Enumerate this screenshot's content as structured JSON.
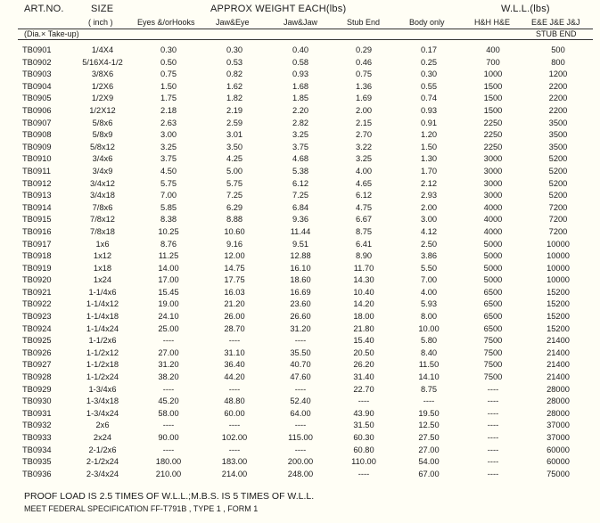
{
  "header": {
    "art_no": "ART.NO.",
    "size": "SIZE",
    "approx_weight": "APPROX WEIGHT EACH(lbs)",
    "wll": "W.L.L.(lbs)",
    "inch": "( inch )",
    "eyes_hooks": "Eyes &/orHooks",
    "jaw_eye": "Jaw&Eye",
    "jaw_jaw": "Jaw&Jaw",
    "stub_end": "Stub End",
    "body_only": "Body only",
    "hh_he": "H&H H&E",
    "ee_je_jj": "E&E J&E J&J",
    "dia_take_up": "(Dia.× Take-up)",
    "stub_end_wll": "STUB END"
  },
  "rows": [
    [
      "TB0901",
      "1/4X4",
      "0.30",
      "0.30",
      "0.40",
      "0.29",
      "0.17",
      "400",
      "500"
    ],
    [
      "TB0902",
      "5/16X4-1/2",
      "0.50",
      "0.53",
      "0.58",
      "0.46",
      "0.25",
      "700",
      "800"
    ],
    [
      "TB0903",
      "3/8X6",
      "0.75",
      "0.82",
      "0.93",
      "0.75",
      "0.30",
      "1000",
      "1200"
    ],
    [
      "TB0904",
      "1/2X6",
      "1.50",
      "1.62",
      "1.68",
      "1.36",
      "0.55",
      "1500",
      "2200"
    ],
    [
      "TB0905",
      "1/2X9",
      "1.75",
      "1.82",
      "1.85",
      "1.69",
      "0.74",
      "1500",
      "2200"
    ],
    [
      "TB0906",
      "1/2X12",
      "2.18",
      "2.19",
      "2.20",
      "2.00",
      "0.93",
      "1500",
      "2200"
    ],
    [
      "TB0907",
      "5/8x6",
      "2.63",
      "2.59",
      "2.82",
      "2.15",
      "0.91",
      "2250",
      "3500"
    ],
    [
      "TB0908",
      "5/8x9",
      "3.00",
      "3.01",
      "3.25",
      "2.70",
      "1.20",
      "2250",
      "3500"
    ],
    [
      "TB0909",
      "5/8x12",
      "3.25",
      "3.50",
      "3.75",
      "3.22",
      "1.50",
      "2250",
      "3500"
    ],
    [
      "TB0910",
      "3/4x6",
      "3.75",
      "4.25",
      "4.68",
      "3.25",
      "1.30",
      "3000",
      "5200"
    ],
    [
      "TB0911",
      "3/4x9",
      "4.50",
      "5.00",
      "5.38",
      "4.00",
      "1.70",
      "3000",
      "5200"
    ],
    [
      "TB0912",
      "3/4x12",
      "5.75",
      "5.75",
      "6.12",
      "4.65",
      "2.12",
      "3000",
      "5200"
    ],
    [
      "TB0913",
      "3/4x18",
      "7.00",
      "7.25",
      "7.25",
      "6.12",
      "2.93",
      "3000",
      "5200"
    ],
    [
      "TB0914",
      "7/8x6",
      "5.85",
      "6.29",
      "6.84",
      "4.75",
      "2.00",
      "4000",
      "7200"
    ],
    [
      "TB0915",
      "7/8x12",
      "8.38",
      "8.88",
      "9.36",
      "6.67",
      "3.00",
      "4000",
      "7200"
    ],
    [
      "TB0916",
      "7/8x18",
      "10.25",
      "10.60",
      "11.44",
      "8.75",
      "4.12",
      "4000",
      "7200"
    ],
    [
      "TB0917",
      "1x6",
      "8.76",
      "9.16",
      "9.51",
      "6.41",
      "2.50",
      "5000",
      "10000"
    ],
    [
      "TB0918",
      "1x12",
      "11.25",
      "12.00",
      "12.88",
      "8.90",
      "3.86",
      "5000",
      "10000"
    ],
    [
      "TB0919",
      "1x18",
      "14.00",
      "14.75",
      "16.10",
      "11.70",
      "5.50",
      "5000",
      "10000"
    ],
    [
      "TB0920",
      "1x24",
      "17.00",
      "17.75",
      "18.60",
      "14.30",
      "7.00",
      "5000",
      "10000"
    ],
    [
      "TB0921",
      "1-1/4x6",
      "15.45",
      "16.03",
      "16.69",
      "10.40",
      "4.00",
      "6500",
      "15200"
    ],
    [
      "TB0922",
      "1-1/4x12",
      "19.00",
      "21.20",
      "23.60",
      "14.20",
      "5.93",
      "6500",
      "15200"
    ],
    [
      "TB0923",
      "1-1/4x18",
      "24.10",
      "26.00",
      "26.60",
      "18.00",
      "8.00",
      "6500",
      "15200"
    ],
    [
      "TB0924",
      "1-1/4x24",
      "25.00",
      "28.70",
      "31.20",
      "21.80",
      "10.00",
      "6500",
      "15200"
    ],
    [
      "TB0925",
      "1-1/2x6",
      "----",
      "----",
      "----",
      "15.40",
      "5.80",
      "7500",
      "21400"
    ],
    [
      "TB0926",
      "1-1/2x12",
      "27.00",
      "31.10",
      "35.50",
      "20.50",
      "8.40",
      "7500",
      "21400"
    ],
    [
      "TB0927",
      "1-1/2x18",
      "31.20",
      "36.40",
      "40.70",
      "26.20",
      "11.50",
      "7500",
      "21400"
    ],
    [
      "TB0928",
      "1-1/2x24",
      "38.20",
      "44.20",
      "47.60",
      "31.40",
      "14.10",
      "7500",
      "21400"
    ],
    [
      "TB0929",
      "1-3/4x6",
      "----",
      "----",
      "----",
      "22.70",
      "8.75",
      "----",
      "28000"
    ],
    [
      "TB0930",
      "1-3/4x18",
      "45.20",
      "48.80",
      "52.40",
      "----",
      "----",
      "----",
      "28000"
    ],
    [
      "TB0931",
      "1-3/4x24",
      "58.00",
      "60.00",
      "64.00",
      "43.90",
      "19.50",
      "----",
      "28000"
    ],
    [
      "TB0932",
      "2x6",
      "----",
      "----",
      "----",
      "31.50",
      "12.50",
      "----",
      "37000"
    ],
    [
      "TB0933",
      "2x24",
      "90.00",
      "102.00",
      "115.00",
      "60.30",
      "27.50",
      "----",
      "37000"
    ],
    [
      "TB0934",
      "2-1/2x6",
      "----",
      "----",
      "----",
      "60.80",
      "27.00",
      "----",
      "60000"
    ],
    [
      "TB0935",
      "2-1/2x24",
      "180.00",
      "183.00",
      "200.00",
      "110.00",
      "54.00",
      "----",
      "60000"
    ],
    [
      "TB0936",
      "2-3/4x24",
      "210.00",
      "214.00",
      "248.00",
      "----",
      "67.00",
      "----",
      "75000"
    ]
  ],
  "footer": {
    "proof_load": "PROOF LOAD IS 2.5 TIMES OF W.L.L.;M.B.S. IS 5 TIMES OF W.L.L.",
    "spec": "MEET FEDERAL SPECIFICATION FF-T791B , TYPE 1 , FORM 1"
  }
}
